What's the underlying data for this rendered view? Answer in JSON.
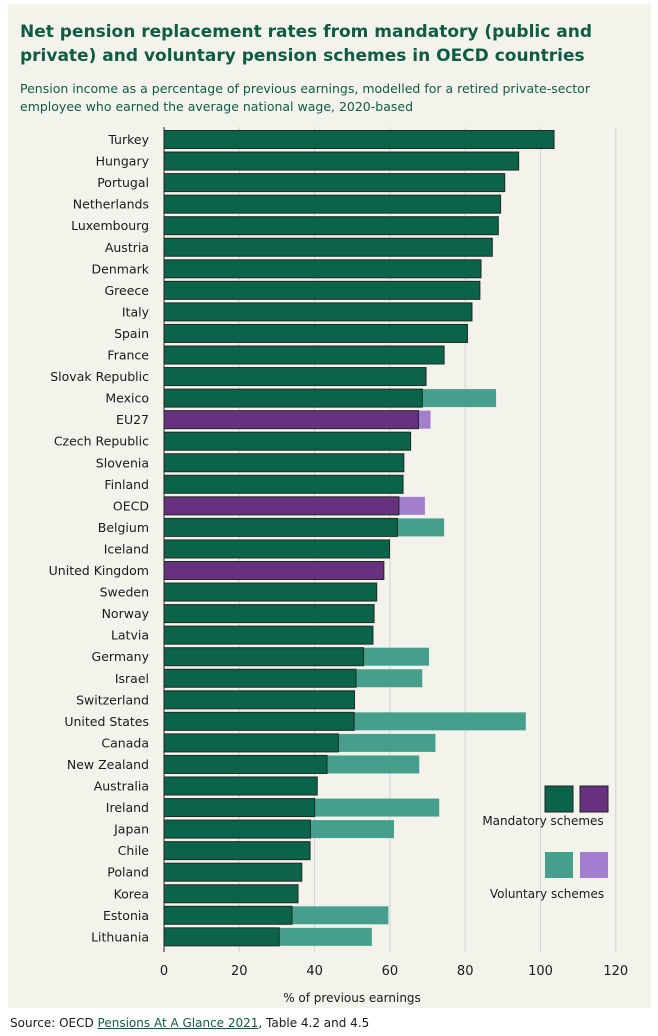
{
  "colors": {
    "mandatory": "#0b6349",
    "voluntary": "#469e8d",
    "mandatory_highlight": "#683180",
    "voluntary_highlight": "#a37dce",
    "background": "#f3f3ec",
    "gridline": "#d3d3cf",
    "title": "#0f5c44"
  },
  "chart_data": {
    "type": "bar",
    "orientation": "horizontal",
    "stacked": true,
    "title": "Net pension replacement rates from mandatory (public and private) and voluntary pension schemes in OECD countries",
    "subtitle": "Pension income as a percentage of previous earnings, modelled for a retired private-sector employee who earned the average national wage, 2020-based",
    "xlabel": "% of previous earnings",
    "ylabel": "",
    "xlim": [
      0,
      120
    ],
    "xticks": [
      0,
      20,
      40,
      60,
      80,
      100,
      120
    ],
    "grid": true,
    "legend_position": "bottom-right",
    "legend": [
      "Mandatory schemes",
      "Voluntary schemes"
    ],
    "highlight_categories": [
      "EU27",
      "OECD",
      "United Kingdom"
    ],
    "categories": [
      "Turkey",
      "Hungary",
      "Portugal",
      "Netherlands",
      "Luxembourg",
      "Austria",
      "Denmark",
      "Greece",
      "Italy",
      "Spain",
      "France",
      "Slovak Republic",
      "Mexico",
      "EU27",
      "Czech Republic",
      "Slovenia",
      "Finland",
      "OECD",
      "Belgium",
      "Iceland",
      "United Kingdom",
      "Sweden",
      "Norway",
      "Latvia",
      "Germany",
      "Israel",
      "Switzerland",
      "United States",
      "Canada",
      "New Zealand",
      "Australia",
      "Ireland",
      "Japan",
      "Chile",
      "Poland",
      "Korea",
      "Estonia",
      "Lithuania"
    ],
    "series": [
      {
        "name": "Mandatory schemes",
        "values": [
          103.6,
          94.2,
          90.5,
          89.4,
          88.8,
          87.2,
          84.2,
          83.9,
          81.8,
          80.6,
          74.4,
          69.6,
          68.6,
          67.6,
          65.5,
          63.7,
          63.5,
          62.4,
          62.0,
          59.9,
          58.4,
          56.5,
          55.8,
          55.5,
          53.0,
          51.0,
          50.6,
          50.5,
          46.3,
          43.3,
          40.7,
          40.0,
          38.9,
          38.8,
          36.6,
          35.6,
          34.0,
          30.6
        ]
      },
      {
        "name": "Voluntary schemes",
        "values": [
          0,
          0,
          0,
          0,
          0,
          0,
          0,
          0,
          0,
          0,
          0,
          0,
          19.6,
          3.2,
          0,
          0,
          0,
          6.9,
          12.4,
          0,
          0,
          0,
          0,
          0,
          17.4,
          17.6,
          0,
          45.6,
          25.8,
          24.5,
          0,
          33.1,
          22.2,
          0,
          0,
          0,
          25.6,
          24.6
        ]
      }
    ]
  },
  "source": {
    "prefix": "Source:  OECD ",
    "link_text": "Pensions At A Glance 2021",
    "suffix": ", Table 4.2 and 4.5"
  }
}
